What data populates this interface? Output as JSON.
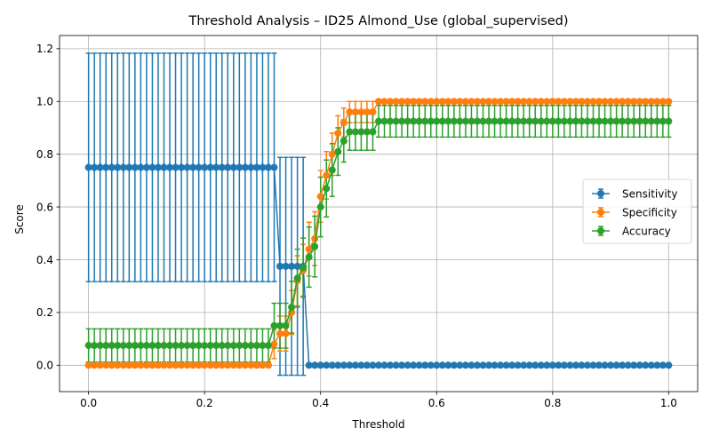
{
  "chart_data": {
    "type": "line",
    "title": "Threshold Analysis – ID25 Almond_Use (global_supervised)",
    "xlabel": "Threshold",
    "ylabel": "Score",
    "xlim": [
      -0.05,
      1.05
    ],
    "ylim": [
      -0.1,
      1.25
    ],
    "xticks": [
      0.0,
      0.2,
      0.4,
      0.6,
      0.8,
      1.0
    ],
    "xtick_labels": [
      "0.0",
      "0.2",
      "0.4",
      "0.6",
      "0.8",
      "1.0"
    ],
    "yticks": [
      0.0,
      0.2,
      0.4,
      0.6,
      0.8,
      1.0,
      1.2
    ],
    "ytick_labels": [
      "0.0",
      "0.2",
      "0.4",
      "0.6",
      "0.8",
      "1.0",
      "1.2"
    ],
    "grid": true,
    "legend_position": "center-right",
    "x": [
      0.0,
      0.01,
      0.02,
      0.03,
      0.04,
      0.05,
      0.06,
      0.07,
      0.08,
      0.09,
      0.1,
      0.11,
      0.12,
      0.13,
      0.14,
      0.15,
      0.16,
      0.17,
      0.18,
      0.19,
      0.2,
      0.21,
      0.22,
      0.23,
      0.24,
      0.25,
      0.26,
      0.27,
      0.28,
      0.29,
      0.3,
      0.31,
      0.32,
      0.33,
      0.34,
      0.35,
      0.36,
      0.37,
      0.38,
      0.39,
      0.4,
      0.41,
      0.42,
      0.43,
      0.44,
      0.45,
      0.46,
      0.47,
      0.48,
      0.49,
      0.5,
      0.51,
      0.52,
      0.53,
      0.54,
      0.55,
      0.56,
      0.57,
      0.58,
      0.59,
      0.6,
      0.61,
      0.62,
      0.63,
      0.64,
      0.65,
      0.66,
      0.67,
      0.68,
      0.69,
      0.7,
      0.71,
      0.72,
      0.73,
      0.74,
      0.75,
      0.76,
      0.77,
      0.78,
      0.79,
      0.8,
      0.81,
      0.82,
      0.83,
      0.84,
      0.85,
      0.86,
      0.87,
      0.88,
      0.89,
      0.9,
      0.91,
      0.92,
      0.93,
      0.94,
      0.95,
      0.96,
      0.97,
      0.98,
      0.99,
      1.0
    ],
    "series": [
      {
        "name": "Sensitivity",
        "color": "#1f77b4",
        "values": [
          0.75,
          0.75,
          0.75,
          0.75,
          0.75,
          0.75,
          0.75,
          0.75,
          0.75,
          0.75,
          0.75,
          0.75,
          0.75,
          0.75,
          0.75,
          0.75,
          0.75,
          0.75,
          0.75,
          0.75,
          0.75,
          0.75,
          0.75,
          0.75,
          0.75,
          0.75,
          0.75,
          0.75,
          0.75,
          0.75,
          0.75,
          0.75,
          0.75,
          0.375,
          0.375,
          0.375,
          0.375,
          0.375,
          0.0,
          0.0,
          0.0,
          0.0,
          0.0,
          0.0,
          0.0,
          0.0,
          0.0,
          0.0,
          0.0,
          0.0,
          0.0,
          0.0,
          0.0,
          0.0,
          0.0,
          0.0,
          0.0,
          0.0,
          0.0,
          0.0,
          0.0,
          0.0,
          0.0,
          0.0,
          0.0,
          0.0,
          0.0,
          0.0,
          0.0,
          0.0,
          0.0,
          0.0,
          0.0,
          0.0,
          0.0,
          0.0,
          0.0,
          0.0,
          0.0,
          0.0,
          0.0,
          0.0,
          0.0,
          0.0,
          0.0,
          0.0,
          0.0,
          0.0,
          0.0,
          0.0,
          0.0,
          0.0,
          0.0,
          0.0,
          0.0,
          0.0,
          0.0,
          0.0,
          0.0,
          0.0,
          0.0
        ],
        "errors": [
          0.433,
          0.433,
          0.433,
          0.433,
          0.433,
          0.433,
          0.433,
          0.433,
          0.433,
          0.433,
          0.433,
          0.433,
          0.433,
          0.433,
          0.433,
          0.433,
          0.433,
          0.433,
          0.433,
          0.433,
          0.433,
          0.433,
          0.433,
          0.433,
          0.433,
          0.433,
          0.433,
          0.433,
          0.433,
          0.433,
          0.433,
          0.433,
          0.433,
          0.413,
          0.413,
          0.413,
          0.413,
          0.413,
          0,
          0,
          0,
          0,
          0,
          0,
          0,
          0,
          0,
          0,
          0,
          0,
          0,
          0,
          0,
          0,
          0,
          0,
          0,
          0,
          0,
          0,
          0,
          0,
          0,
          0,
          0,
          0,
          0,
          0,
          0,
          0,
          0,
          0,
          0,
          0,
          0,
          0,
          0,
          0,
          0,
          0,
          0,
          0,
          0,
          0,
          0,
          0,
          0,
          0,
          0,
          0,
          0,
          0,
          0,
          0,
          0,
          0,
          0,
          0,
          0,
          0,
          0
        ]
      },
      {
        "name": "Specificity",
        "color": "#ff7f0e",
        "values": [
          0.0,
          0.0,
          0.0,
          0.0,
          0.0,
          0.0,
          0.0,
          0.0,
          0.0,
          0.0,
          0.0,
          0.0,
          0.0,
          0.0,
          0.0,
          0.0,
          0.0,
          0.0,
          0.0,
          0.0,
          0.0,
          0.0,
          0.0,
          0.0,
          0.0,
          0.0,
          0.0,
          0.0,
          0.0,
          0.0,
          0.0,
          0.0,
          0.08,
          0.12,
          0.12,
          0.2,
          0.32,
          0.36,
          0.44,
          0.48,
          0.64,
          0.72,
          0.8,
          0.88,
          0.92,
          0.96,
          0.96,
          0.96,
          0.96,
          0.96,
          1.0,
          1.0,
          1.0,
          1.0,
          1.0,
          1.0,
          1.0,
          1.0,
          1.0,
          1.0,
          1.0,
          1.0,
          1.0,
          1.0,
          1.0,
          1.0,
          1.0,
          1.0,
          1.0,
          1.0,
          1.0,
          1.0,
          1.0,
          1.0,
          1.0,
          1.0,
          1.0,
          1.0,
          1.0,
          1.0,
          1.0,
          1.0,
          1.0,
          1.0,
          1.0,
          1.0,
          1.0,
          1.0,
          1.0,
          1.0,
          1.0,
          1.0,
          1.0,
          1.0,
          1.0,
          1.0,
          1.0,
          1.0,
          1.0,
          1.0,
          1.0
        ],
        "errors": [
          0,
          0,
          0,
          0,
          0,
          0,
          0,
          0,
          0,
          0,
          0,
          0,
          0,
          0,
          0,
          0,
          0,
          0,
          0,
          0,
          0,
          0,
          0,
          0,
          0,
          0,
          0,
          0,
          0,
          0,
          0,
          0,
          0.055,
          0.066,
          0.066,
          0.083,
          0.095,
          0.098,
          0.102,
          0.102,
          0.098,
          0.09,
          0.08,
          0.066,
          0.055,
          0.04,
          0.04,
          0.04,
          0.04,
          0.04,
          0,
          0,
          0,
          0,
          0,
          0,
          0,
          0,
          0,
          0,
          0,
          0,
          0,
          0,
          0,
          0,
          0,
          0,
          0,
          0,
          0,
          0,
          0,
          0,
          0,
          0,
          0,
          0,
          0,
          0,
          0,
          0,
          0,
          0,
          0,
          0,
          0,
          0,
          0,
          0,
          0,
          0,
          0,
          0,
          0,
          0,
          0,
          0,
          0,
          0,
          0
        ]
      },
      {
        "name": "Accuracy",
        "color": "#2ca02c",
        "values": [
          0.075,
          0.075,
          0.075,
          0.075,
          0.075,
          0.075,
          0.075,
          0.075,
          0.075,
          0.075,
          0.075,
          0.075,
          0.075,
          0.075,
          0.075,
          0.075,
          0.075,
          0.075,
          0.075,
          0.075,
          0.075,
          0.075,
          0.075,
          0.075,
          0.075,
          0.075,
          0.075,
          0.075,
          0.075,
          0.075,
          0.075,
          0.075,
          0.15,
          0.15,
          0.15,
          0.22,
          0.33,
          0.37,
          0.41,
          0.45,
          0.6,
          0.67,
          0.74,
          0.81,
          0.85,
          0.885,
          0.885,
          0.885,
          0.885,
          0.885,
          0.925,
          0.925,
          0.925,
          0.925,
          0.925,
          0.925,
          0.925,
          0.925,
          0.925,
          0.925,
          0.925,
          0.925,
          0.925,
          0.925,
          0.925,
          0.925,
          0.925,
          0.925,
          0.925,
          0.925,
          0.925,
          0.925,
          0.925,
          0.925,
          0.925,
          0.925,
          0.925,
          0.925,
          0.925,
          0.925,
          0.925,
          0.925,
          0.925,
          0.925,
          0.925,
          0.925,
          0.925,
          0.925,
          0.925,
          0.925,
          0.925,
          0.925,
          0.925,
          0.925,
          0.925,
          0.925,
          0.925,
          0.925,
          0.925,
          0.925,
          0.925
        ],
        "errors": [
          0.063,
          0.063,
          0.063,
          0.063,
          0.063,
          0.063,
          0.063,
          0.063,
          0.063,
          0.063,
          0.063,
          0.063,
          0.063,
          0.063,
          0.063,
          0.063,
          0.063,
          0.063,
          0.063,
          0.063,
          0.063,
          0.063,
          0.063,
          0.063,
          0.063,
          0.063,
          0.063,
          0.063,
          0.063,
          0.063,
          0.063,
          0.063,
          0.085,
          0.085,
          0.085,
          0.098,
          0.11,
          0.112,
          0.114,
          0.115,
          0.113,
          0.108,
          0.1,
          0.09,
          0.08,
          0.07,
          0.07,
          0.07,
          0.07,
          0.07,
          0.06,
          0.06,
          0.06,
          0.06,
          0.06,
          0.06,
          0.06,
          0.06,
          0.06,
          0.06,
          0.06,
          0.06,
          0.06,
          0.06,
          0.06,
          0.06,
          0.06,
          0.06,
          0.06,
          0.06,
          0.06,
          0.06,
          0.06,
          0.06,
          0.06,
          0.06,
          0.06,
          0.06,
          0.06,
          0.06,
          0.06,
          0.06,
          0.06,
          0.06,
          0.06,
          0.06,
          0.06,
          0.06,
          0.06,
          0.06,
          0.06,
          0.06,
          0.06,
          0.06,
          0.06,
          0.06,
          0.06,
          0.06,
          0.06,
          0.06,
          0.06
        ]
      }
    ]
  }
}
